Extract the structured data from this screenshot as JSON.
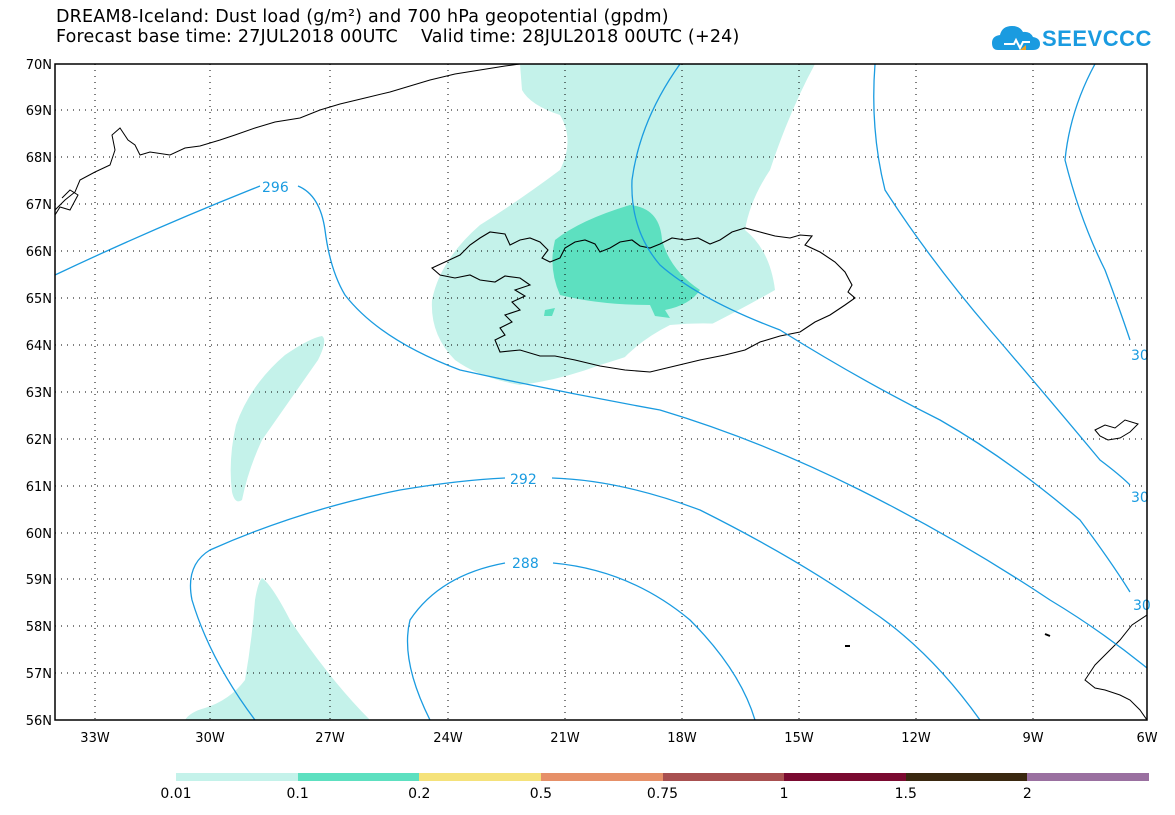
{
  "title_line1": "DREAM8-Iceland: Dust load (g/m²) and 700 hPa geopotential (gpdm)",
  "title_line2": "Forecast base time: 27JUL2018 00UTC    Valid time: 28JUL2018 00UTC (+24)",
  "logo_text": "SEEVCCC",
  "logo_icon": "cloud-logo-icon",
  "latitude_labels": [
    "70N",
    "69N",
    "68N",
    "67N",
    "66N",
    "65N",
    "64N",
    "63N",
    "62N",
    "61N",
    "60N",
    "59N",
    "58N",
    "57N",
    "56N"
  ],
  "longitude_labels": [
    "33W",
    "30W",
    "27W",
    "24W",
    "21W",
    "18W",
    "15W",
    "12W",
    "9W",
    "6W"
  ],
  "contour_labels": {
    "c296": "296",
    "c292": "292",
    "c288": "288",
    "c300a": "30",
    "c300b": "30",
    "c300c": "30"
  },
  "legend": {
    "colors": [
      "#c4f2ea",
      "#5de0c0",
      "#f5e27a",
      "#e69068",
      "#a85050",
      "#7a0a30",
      "#3a2810",
      "#9a70a0"
    ],
    "labels": [
      "0.01",
      "0.1",
      "0.2",
      "0.5",
      "0.75",
      "1",
      "1.5",
      "2"
    ]
  },
  "colors": {
    "contour": "#1a9be0",
    "dust_low": "#c4f2ea",
    "dust_mid": "#5de0c0"
  }
}
